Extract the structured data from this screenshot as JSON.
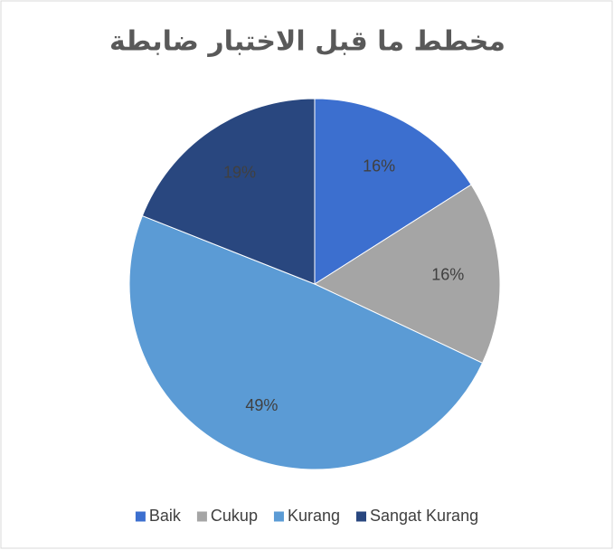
{
  "chart_data": {
    "type": "pie",
    "title": "مخطط ما قبل الاختبار ضابطة",
    "categories": [
      "Baik",
      "Cukup",
      "Kurang",
      "Sangat Kurang"
    ],
    "values": [
      16,
      16,
      49,
      19
    ],
    "value_labels": [
      "16%",
      "16%",
      "49%",
      "19%"
    ],
    "colors": [
      "#3c6fcf",
      "#a5a5a5",
      "#5b9bd5",
      "#29477f"
    ],
    "legend": "bottom"
  }
}
